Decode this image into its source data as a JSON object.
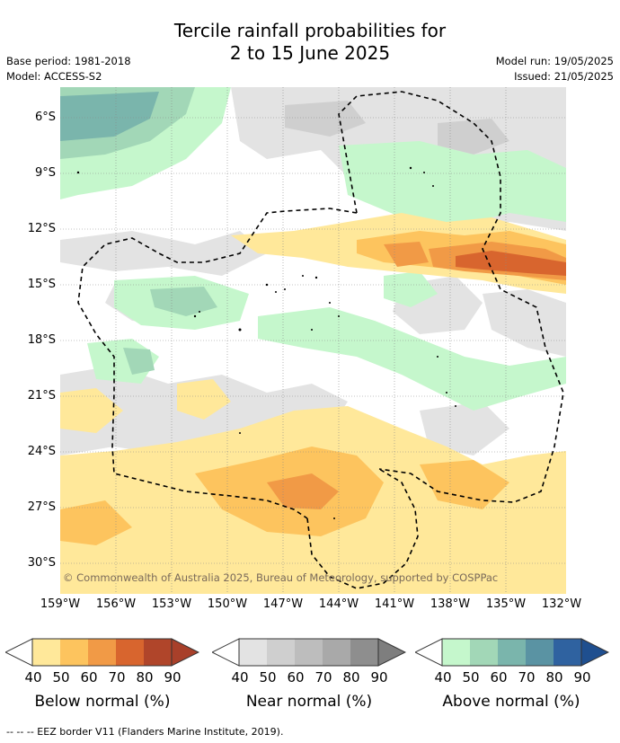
{
  "title": {
    "line1": "Tercile rainfall probabilities for",
    "line2": "2 to 15 June 2025"
  },
  "meta": {
    "base_period": "Base period: 1981-2018",
    "model": "Model: ACCESS-S2",
    "model_run": "Model run: 19/05/2025",
    "issued": "Issued: 21/05/2025"
  },
  "map": {
    "lat_labels": [
      "6°S",
      "9°S",
      "12°S",
      "15°S",
      "18°S",
      "21°S",
      "24°S",
      "27°S",
      "30°S"
    ],
    "lon_labels": [
      "159°W",
      "156°W",
      "153°W",
      "150°W",
      "147°W",
      "144°W",
      "141°W",
      "138°W",
      "135°W",
      "132°W"
    ],
    "copyright": "© Commonwealth of Australia 2025, Bureau of Meteorology, supported by COSPPac",
    "colors": {
      "below": [
        "#ffe89a",
        "#fdc45e",
        "#f19a46",
        "#d8652e",
        "#b0452a"
      ],
      "near": [
        "#e3e3e3",
        "#cfcfcf",
        "#bdbdbd",
        "#a9a9a9",
        "#8e8e8e"
      ],
      "above": [
        "#c5f7cc",
        "#a2d7b7",
        "#7ab5ac",
        "#5a93a3",
        "#2f62a0"
      ]
    }
  },
  "legends": [
    {
      "label": "Below normal (%)",
      "ticks": [
        "40",
        "50",
        "60",
        "70",
        "80",
        "90"
      ]
    },
    {
      "label": "Near normal (%)",
      "ticks": [
        "40",
        "50",
        "60",
        "70",
        "80",
        "90"
      ]
    },
    {
      "label": "Above normal (%)",
      "ticks": [
        "40",
        "50",
        "60",
        "70",
        "80",
        "90"
      ]
    }
  ],
  "footer": "--  --  -- EEZ border V11 (Flanders Marine Institute, 2019)."
}
